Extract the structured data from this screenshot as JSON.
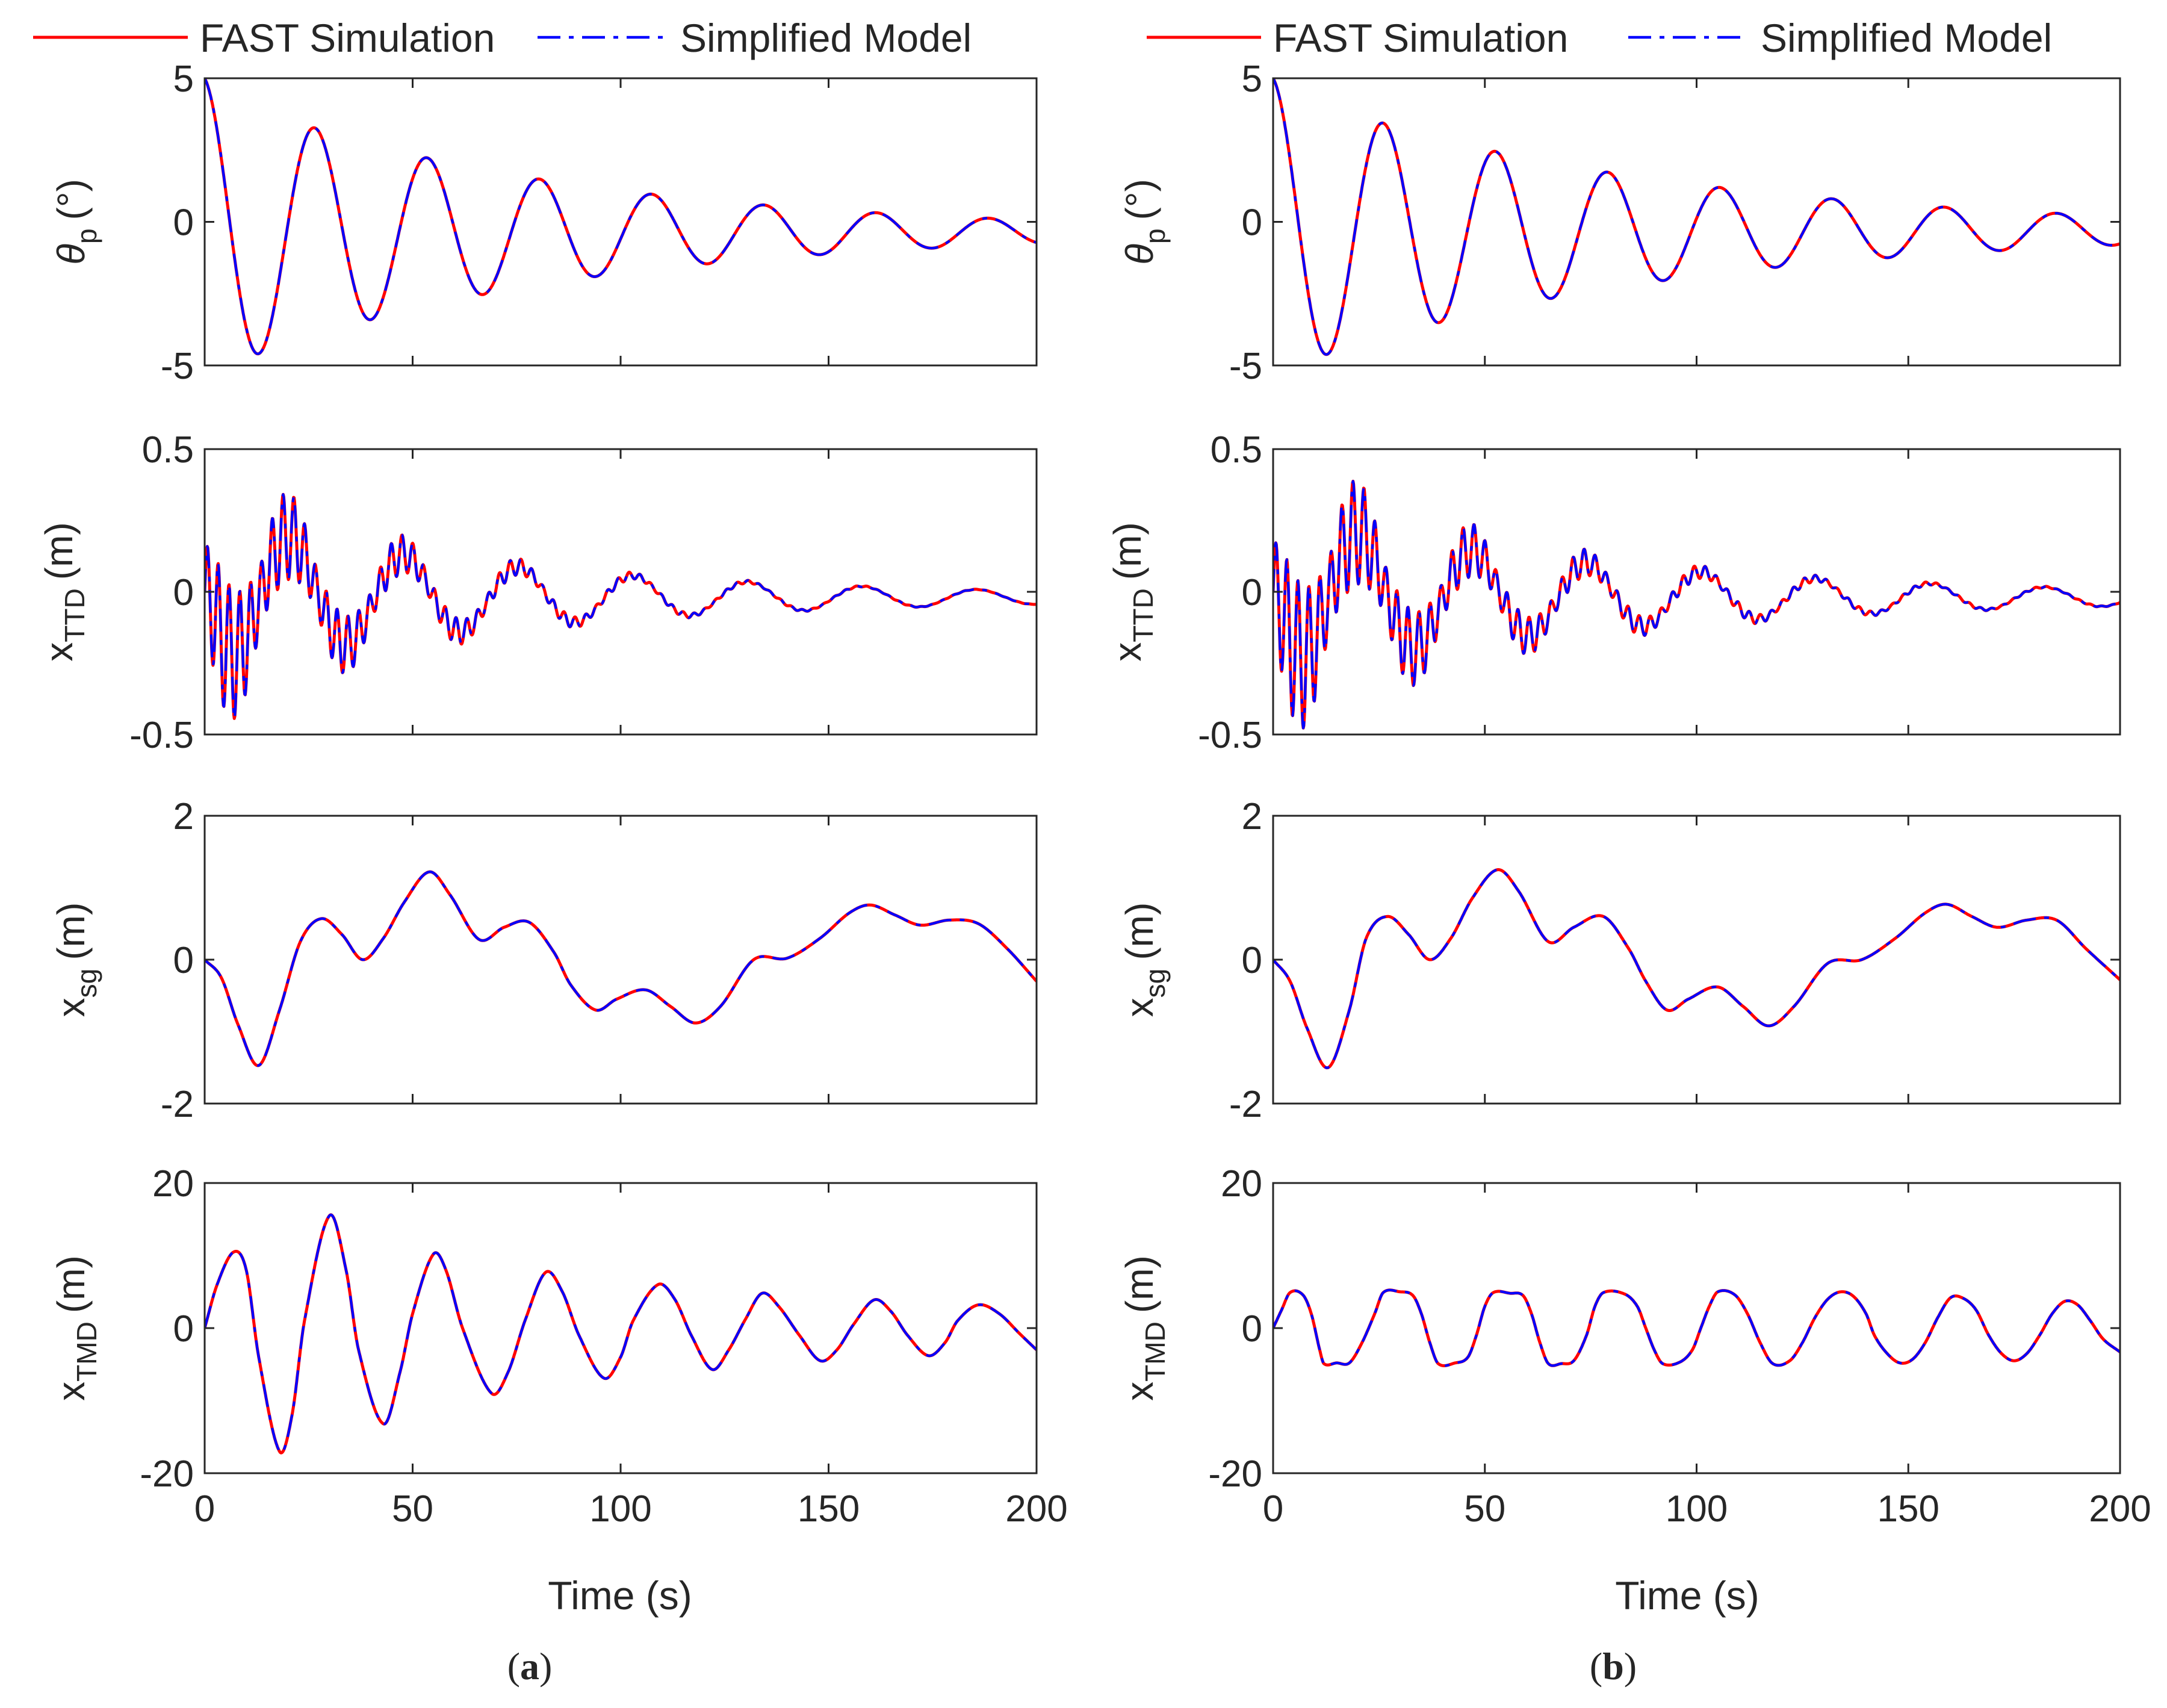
{
  "colors": {
    "fast": "#ff0000",
    "simplified": "#0000ff",
    "axis": "#262626"
  },
  "legend": {
    "fast": "FAST Simulation",
    "simplified": "Simplified Model"
  },
  "xlabel": "Time (s)",
  "panels": [
    {
      "id": "a",
      "label_open": "(",
      "label_letter": "a",
      "label_close": ")"
    },
    {
      "id": "b",
      "label_open": "(",
      "label_letter": "b",
      "label_close": ")"
    }
  ],
  "chart_data": [
    {
      "panel": "a",
      "type": "line",
      "var": "pitch",
      "ylabel_base": "θ",
      "ylabel_sub": "p",
      "ylabel_unit": "(°)",
      "xlim": [
        0,
        200
      ],
      "ylim": [
        -5,
        5
      ],
      "xticks": [
        0,
        50,
        100,
        150,
        200
      ],
      "yticks": [
        -5,
        0,
        5
      ],
      "xticklabels": [],
      "yticklabels": [
        "-5",
        "0",
        "5"
      ],
      "model": {
        "A": 5.0,
        "B": -0.6,
        "decay": 0.0125,
        "period": 27.0,
        "offset": -0.35
      },
      "series": [
        {
          "name": "FAST Simulation",
          "x_max": 200
        },
        {
          "name": "Simplified Model",
          "x_max": 200
        }
      ]
    },
    {
      "panel": "a",
      "type": "line",
      "var": "ttd",
      "ylabel_base": "x",
      "ylabel_sub": "TTD",
      "ylabel_unit": "(m)",
      "xlim": [
        0,
        200
      ],
      "ylim": [
        -0.5,
        0.5
      ],
      "xticks": [
        0,
        50,
        100,
        150,
        200
      ],
      "yticks": [
        -0.5,
        0,
        0.5
      ],
      "xticklabels": [],
      "yticklabels": [
        "-0.5",
        "0",
        "0.5"
      ],
      "model": {
        "A": -0.26,
        "decay": 0.012,
        "period": 27.0,
        "B": 0.28,
        "hf_period": 2.6,
        "hf_decay": 0.03,
        "offset": -0.02
      },
      "series": [
        {
          "name": "FAST Simulation",
          "x_max": 200
        },
        {
          "name": "Simplified Model",
          "x_max": 200
        }
      ]
    },
    {
      "panel": "a",
      "type": "line",
      "var": "surge",
      "ylabel_base": "x",
      "ylabel_sub": "sg",
      "ylabel_unit": "(m)",
      "xlim": [
        0,
        200
      ],
      "ylim": [
        -2,
        2
      ],
      "xticks": [
        0,
        50,
        100,
        150,
        200
      ],
      "yticks": [
        -2,
        0,
        2
      ],
      "xticklabels": [],
      "yticklabels": [
        "-2",
        "0",
        "2"
      ],
      "keypoints": [
        [
          0,
          0
        ],
        [
          4,
          -0.25
        ],
        [
          8,
          -0.9
        ],
        [
          13,
          -1.47
        ],
        [
          18,
          -0.7
        ],
        [
          23,
          0.25
        ],
        [
          28,
          0.57
        ],
        [
          33,
          0.35
        ],
        [
          38,
          0.0
        ],
        [
          43,
          0.3
        ],
        [
          48,
          0.8
        ],
        [
          54,
          1.22
        ],
        [
          59,
          0.9
        ],
        [
          66,
          0.28
        ],
        [
          72,
          0.45
        ],
        [
          78,
          0.52
        ],
        [
          84,
          0.1
        ],
        [
          88,
          -0.35
        ],
        [
          94,
          -0.7
        ],
        [
          99,
          -0.55
        ],
        [
          106,
          -0.42
        ],
        [
          112,
          -0.65
        ],
        [
          118,
          -0.88
        ],
        [
          124,
          -0.65
        ],
        [
          132,
          0.0
        ],
        [
          140,
          0.02
        ],
        [
          148,
          0.3
        ],
        [
          155,
          0.65
        ],
        [
          160,
          0.76
        ],
        [
          166,
          0.62
        ],
        [
          172,
          0.48
        ],
        [
          179,
          0.55
        ],
        [
          186,
          0.5
        ],
        [
          193,
          0.15
        ],
        [
          200,
          -0.3
        ]
      ],
      "series": [
        {
          "name": "FAST Simulation",
          "x_max": 200
        },
        {
          "name": "Simplified Model",
          "x_max": 200
        }
      ]
    },
    {
      "panel": "a",
      "type": "line",
      "var": "tmd",
      "ylabel_base": "x",
      "ylabel_sub": "TMD",
      "ylabel_unit": "(m)",
      "xlim": [
        0,
        200
      ],
      "ylim": [
        -20,
        20
      ],
      "xticks": [
        0,
        50,
        100,
        150,
        200
      ],
      "yticks": [
        -20,
        0,
        20
      ],
      "xticklabels": [
        "0",
        "50",
        "100",
        "150",
        "200"
      ],
      "yticklabels": [
        "-20",
        "0",
        "20"
      ],
      "keypoints": [
        [
          0,
          0
        ],
        [
          3,
          6
        ],
        [
          7,
          10.5
        ],
        [
          10,
          8
        ],
        [
          13,
          -4
        ],
        [
          18,
          -17
        ],
        [
          21,
          -12
        ],
        [
          24,
          1
        ],
        [
          30,
          15.5
        ],
        [
          34,
          8
        ],
        [
          37,
          -3
        ],
        [
          43,
          -13.2
        ],
        [
          47,
          -6
        ],
        [
          50,
          2
        ],
        [
          55,
          10.2
        ],
        [
          58,
          8
        ],
        [
          62,
          0
        ],
        [
          69,
          -9
        ],
        [
          73,
          -6
        ],
        [
          77,
          1
        ],
        [
          82,
          7.7
        ],
        [
          86,
          5
        ],
        [
          90,
          -1
        ],
        [
          96,
          -6.9
        ],
        [
          100,
          -4
        ],
        [
          103,
          1
        ],
        [
          109,
          6
        ],
        [
          113,
          4
        ],
        [
          117,
          -1
        ],
        [
          122,
          -5.7
        ],
        [
          126,
          -3
        ],
        [
          130,
          1.2
        ],
        [
          134,
          4.8
        ],
        [
          138,
          3
        ],
        [
          143,
          -1
        ],
        [
          148,
          -4.5
        ],
        [
          152,
          -3
        ],
        [
          156,
          0.5
        ],
        [
          161,
          3.9
        ],
        [
          165,
          2.3
        ],
        [
          169,
          -1
        ],
        [
          174,
          -3.8
        ],
        [
          178,
          -2
        ],
        [
          181,
          1
        ],
        [
          186,
          3.2
        ],
        [
          191,
          2
        ],
        [
          196,
          -0.8
        ],
        [
          200,
          -3
        ]
      ],
      "series": [
        {
          "name": "FAST Simulation",
          "x_max": 200
        },
        {
          "name": "Simplified Model",
          "x_max": 200
        }
      ]
    },
    {
      "panel": "b",
      "type": "line",
      "var": "pitch",
      "ylabel_base": "θ",
      "ylabel_sub": "p",
      "ylabel_unit": "(°)",
      "xlim": [
        0,
        200
      ],
      "ylim": [
        -5,
        5
      ],
      "xticks": [
        0,
        50,
        100,
        150,
        200
      ],
      "yticks": [
        -5,
        0,
        5
      ],
      "xticklabels": [],
      "yticklabels": [
        "-5",
        "0",
        "5"
      ],
      "model": {
        "A": 5.0,
        "B": -0.6,
        "decay": 0.0115,
        "period": 26.5,
        "offset": -0.3
      },
      "series": [
        {
          "name": "FAST Simulation",
          "x_max": 200
        },
        {
          "name": "Simplified Model",
          "x_max": 200
        }
      ]
    },
    {
      "panel": "b",
      "type": "line",
      "var": "ttd",
      "ylabel_base": "x",
      "ylabel_sub": "TTD",
      "ylabel_unit": "(m)",
      "xlim": [
        0,
        200
      ],
      "ylim": [
        -0.5,
        0.5
      ],
      "xticks": [
        0,
        50,
        100,
        150,
        200
      ],
      "yticks": [
        -0.5,
        0,
        0.5
      ],
      "xticklabels": [],
      "yticklabels": [
        "-0.5",
        "0",
        "0.5"
      ],
      "model": {
        "A": -0.27,
        "decay": 0.011,
        "period": 26.5,
        "B": 0.3,
        "hf_period": 2.6,
        "hf_decay": 0.025,
        "offset": -0.02
      },
      "series": [
        {
          "name": "FAST Simulation",
          "x_max": 200
        },
        {
          "name": "Simplified Model",
          "x_max": 200
        }
      ]
    },
    {
      "panel": "b",
      "type": "line",
      "var": "surge",
      "ylabel_base": "x",
      "ylabel_sub": "sg",
      "ylabel_unit": "(m)",
      "xlim": [
        0,
        200
      ],
      "ylim": [
        -2,
        2
      ],
      "xticks": [
        0,
        50,
        100,
        150,
        200
      ],
      "yticks": [
        -2,
        0,
        2
      ],
      "xticklabels": [],
      "yticklabels": [
        "-2",
        "0",
        "2"
      ],
      "keypoints": [
        [
          0,
          0
        ],
        [
          4,
          -0.3
        ],
        [
          8,
          -0.95
        ],
        [
          13,
          -1.5
        ],
        [
          18,
          -0.7
        ],
        [
          22,
          0.3
        ],
        [
          27,
          0.6
        ],
        [
          32,
          0.35
        ],
        [
          37,
          0.0
        ],
        [
          42,
          0.3
        ],
        [
          47,
          0.85
        ],
        [
          53,
          1.25
        ],
        [
          58,
          0.95
        ],
        [
          65,
          0.25
        ],
        [
          71,
          0.45
        ],
        [
          78,
          0.6
        ],
        [
          84,
          0.15
        ],
        [
          88,
          -0.3
        ],
        [
          93,
          -0.7
        ],
        [
          98,
          -0.55
        ],
        [
          105,
          -0.38
        ],
        [
          111,
          -0.65
        ],
        [
          117,
          -0.92
        ],
        [
          123,
          -0.65
        ],
        [
          131,
          -0.05
        ],
        [
          139,
          0.0
        ],
        [
          147,
          0.3
        ],
        [
          154,
          0.65
        ],
        [
          159,
          0.77
        ],
        [
          165,
          0.6
        ],
        [
          171,
          0.45
        ],
        [
          178,
          0.55
        ],
        [
          185,
          0.55
        ],
        [
          192,
          0.15
        ],
        [
          200,
          -0.28
        ]
      ],
      "series": [
        {
          "name": "FAST Simulation",
          "x_max": 200
        },
        {
          "name": "Simplified Model",
          "x_max": 200
        }
      ]
    },
    {
      "panel": "b",
      "type": "line",
      "var": "tmd",
      "ylabel_base": "x",
      "ylabel_sub": "TMD",
      "ylabel_unit": "(m)",
      "xlim": [
        0,
        200
      ],
      "ylim": [
        -20,
        20
      ],
      "xticks": [
        0,
        50,
        100,
        150,
        200
      ],
      "yticks": [
        -20,
        0,
        20
      ],
      "xticklabels": [
        "0",
        "50",
        "100",
        "150",
        "200"
      ],
      "yticklabels": [
        "-20",
        "0",
        "20"
      ],
      "keypoints": [
        [
          0,
          0
        ],
        [
          2,
          2.5
        ],
        [
          4,
          4.9
        ],
        [
          7,
          4.6
        ],
        [
          9,
          2
        ],
        [
          11,
          -3
        ],
        [
          12,
          -4.9
        ],
        [
          15,
          -4.8
        ],
        [
          18,
          -4.8
        ],
        [
          21,
          -2
        ],
        [
          24,
          2
        ],
        [
          26,
          4.9
        ],
        [
          30,
          5.0
        ],
        [
          33,
          4.5
        ],
        [
          35,
          2
        ],
        [
          37,
          -2
        ],
        [
          39,
          -4.9
        ],
        [
          43,
          -4.8
        ],
        [
          46,
          -4.0
        ],
        [
          48,
          -1
        ],
        [
          50,
          3
        ],
        [
          52,
          4.9
        ],
        [
          56,
          4.8
        ],
        [
          59,
          4.5
        ],
        [
          61,
          2
        ],
        [
          63,
          -2
        ],
        [
          65,
          -4.9
        ],
        [
          68,
          -4.9
        ],
        [
          71,
          -4.5
        ],
        [
          74,
          -1
        ],
        [
          76,
          3
        ],
        [
          78,
          4.9
        ],
        [
          83,
          4.7
        ],
        [
          86,
          3
        ],
        [
          88,
          0
        ],
        [
          90,
          -3
        ],
        [
          92,
          -4.9
        ],
        [
          96,
          -4.7
        ],
        [
          99,
          -3
        ],
        [
          101,
          0
        ],
        [
          103,
          3
        ],
        [
          105,
          5.0
        ],
        [
          109,
          4.6
        ],
        [
          112,
          2
        ],
        [
          115,
          -2
        ],
        [
          118,
          -4.9
        ],
        [
          122,
          -4.5
        ],
        [
          125,
          -2
        ],
        [
          128,
          1.5
        ],
        [
          131,
          4
        ],
        [
          134,
          5.0
        ],
        [
          137,
          4.4
        ],
        [
          140,
          2
        ],
        [
          142,
          -1
        ],
        [
          145,
          -3.5
        ],
        [
          148,
          -4.8
        ],
        [
          151,
          -4.3
        ],
        [
          154,
          -2
        ],
        [
          157,
          1.5
        ],
        [
          160,
          4.2
        ],
        [
          163,
          4.1
        ],
        [
          166,
          2.5
        ],
        [
          169,
          -1
        ],
        [
          172,
          -3.5
        ],
        [
          175,
          -4.5
        ],
        [
          178,
          -3.5
        ],
        [
          181,
          -1
        ],
        [
          184,
          2
        ],
        [
          187,
          3.7
        ],
        [
          190,
          3.2
        ],
        [
          193,
          1
        ],
        [
          196,
          -1.5
        ],
        [
          200,
          -3.3
        ]
      ],
      "series": [
        {
          "name": "FAST Simulation",
          "x_max": 200
        },
        {
          "name": "Simplified Model",
          "x_max": 200
        }
      ]
    }
  ]
}
